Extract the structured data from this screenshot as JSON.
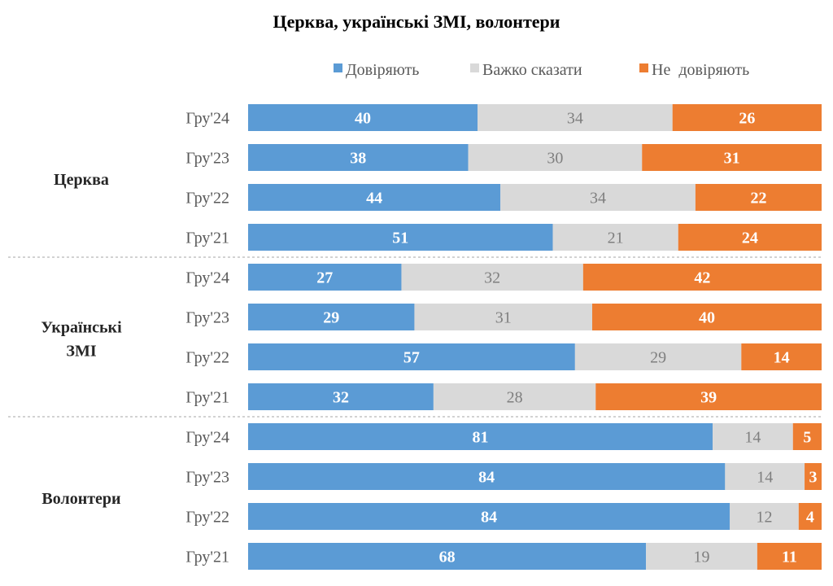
{
  "chart_data": {
    "type": "bar",
    "orientation": "horizontal",
    "stacked": "100%",
    "title": "Церква, українські ЗМІ, волонтери",
    "legend_position": "top",
    "grid": false,
    "colors": {
      "Довіряють": "#5B9BD5",
      "Важко сказати": "#D9D9D9",
      "Не  довіряють": "#ED7D31"
    },
    "series_names": [
      "Довіряють",
      "Важко сказати",
      "Не  довіряють"
    ],
    "groups": [
      {
        "label": [
          "Церква"
        ],
        "rows": [
          {
            "period": "Гру'24",
            "values": [
              40,
              34,
              26
            ]
          },
          {
            "period": "Гру'23",
            "values": [
              38,
              30,
              31
            ]
          },
          {
            "period": "Гру'22",
            "values": [
              44,
              34,
              22
            ]
          },
          {
            "period": "Гру'21",
            "values": [
              51,
              21,
              24
            ]
          }
        ]
      },
      {
        "label": [
          "Українські",
          "ЗМІ"
        ],
        "rows": [
          {
            "period": "Гру'24",
            "values": [
              27,
              32,
              42
            ]
          },
          {
            "period": "Гру'23",
            "values": [
              29,
              31,
              40
            ]
          },
          {
            "period": "Гру'22",
            "values": [
              57,
              29,
              14
            ]
          },
          {
            "period": "Гру'21",
            "values": [
              32,
              28,
              39
            ]
          }
        ]
      },
      {
        "label": [
          "Волонтери"
        ],
        "rows": [
          {
            "period": "Гру'24",
            "values": [
              81,
              14,
              5
            ]
          },
          {
            "period": "Гру'23",
            "values": [
              84,
              14,
              3
            ]
          },
          {
            "period": "Гру'22",
            "values": [
              84,
              12,
              4
            ]
          },
          {
            "period": "Гру'21",
            "values": [
              68,
              19,
              11
            ]
          }
        ]
      }
    ]
  }
}
